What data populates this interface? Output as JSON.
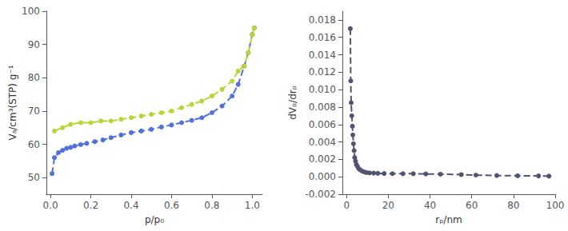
{
  "chart_data": [
    {
      "type": "line",
      "xlabel": "p/p₀",
      "ylabel": "Vₐ/cm³(STP) g⁻¹",
      "xlim": [
        -0.02,
        1.05
      ],
      "ylim": [
        45,
        100
      ],
      "xticks": [
        {
          "value": 0.0,
          "label": "0.0"
        },
        0.2,
        0.4,
        0.6,
        0.8,
        {
          "value": 1.0,
          "label": "1.0"
        }
      ],
      "yticks": [
        50,
        60,
        70,
        80,
        90,
        100
      ],
      "grid": false,
      "series": [
        {
          "marker": "circle",
          "line_style": "dashed",
          "x": [
            0.008,
            0.02,
            0.04,
            0.06,
            0.08,
            0.1,
            0.12,
            0.15,
            0.18,
            0.22,
            0.26,
            0.3,
            0.35,
            0.4,
            0.45,
            0.5,
            0.55,
            0.6,
            0.65,
            0.7,
            0.75,
            0.8,
            0.85,
            0.9,
            0.93,
            0.96,
            0.98,
            1.0,
            1.01
          ],
          "values": [
            51.2,
            56.0,
            57.5,
            58.2,
            58.8,
            59.1,
            59.5,
            59.9,
            60.3,
            60.8,
            61.3,
            62.0,
            62.8,
            63.5,
            64.0,
            64.5,
            65.2,
            65.8,
            66.5,
            67.2,
            68.0,
            69.5,
            71.5,
            74.5,
            78.0,
            83.5,
            87.5,
            93.0,
            95.0
          ]
        },
        {
          "marker": "circle",
          "line_style": "dashed",
          "x": [
            1.01,
            1.0,
            0.98,
            0.96,
            0.93,
            0.9,
            0.85,
            0.8,
            0.75,
            0.7,
            0.65,
            0.6,
            0.55,
            0.5,
            0.45,
            0.4,
            0.35,
            0.3,
            0.25,
            0.2,
            0.15,
            0.1,
            0.06,
            0.02
          ],
          "values": [
            95.0,
            93.0,
            87.5,
            83.5,
            82.0,
            79.0,
            76.5,
            74.5,
            73.0,
            72.0,
            71.0,
            70.0,
            69.5,
            69.0,
            68.5,
            68.0,
            67.5,
            67.0,
            67.0,
            66.5,
            66.5,
            66.0,
            65.0,
            64.0
          ]
        }
      ]
    },
    {
      "type": "line",
      "xlabel": "rₚ/nm",
      "ylabel": "dVₚ/drₚ",
      "xlim": [
        -2,
        100
      ],
      "ylim": [
        -0.002,
        0.019
      ],
      "xticks": [
        0,
        20,
        40,
        60,
        80,
        100
      ],
      "yticks": [
        -0.002,
        {
          "value": 0.0,
          "label": "0.000"
        },
        0.002,
        0.004,
        0.006,
        0.008,
        {
          "value": 0.01,
          "label": "0.010"
        },
        0.012,
        0.014,
        0.016,
        0.018
      ],
      "grid": false,
      "series": [
        {
          "marker": "circle",
          "line_style": "dashed",
          "x": [
            1.8,
            2.0,
            2.2,
            2.5,
            2.8,
            3.0,
            3.3,
            3.6,
            3.9,
            4.3,
            4.7,
            5.2,
            5.8,
            6.5,
            7.5,
            8.5,
            9.5,
            11.0,
            13.0,
            15.0,
            18.0,
            22.0,
            27.0,
            32.0,
            38.0,
            45.0,
            55.0,
            62.0,
            72.0,
            82.0,
            92.0,
            97.0
          ],
          "values": [
            0.017,
            0.011,
            0.0085,
            0.007,
            0.0058,
            0.0048,
            0.0038,
            0.003,
            0.0022,
            0.0018,
            0.0014,
            0.0012,
            0.00095,
            0.0008,
            0.00065,
            0.00055,
            0.00048,
            0.00045,
            0.00042,
            0.0004,
            0.00038,
            0.00036,
            0.00035,
            0.00035,
            0.00033,
            0.0003,
            0.00025,
            0.0002,
            0.00015,
            0.00012,
            0.0001,
            8e-05
          ]
        }
      ]
    }
  ]
}
